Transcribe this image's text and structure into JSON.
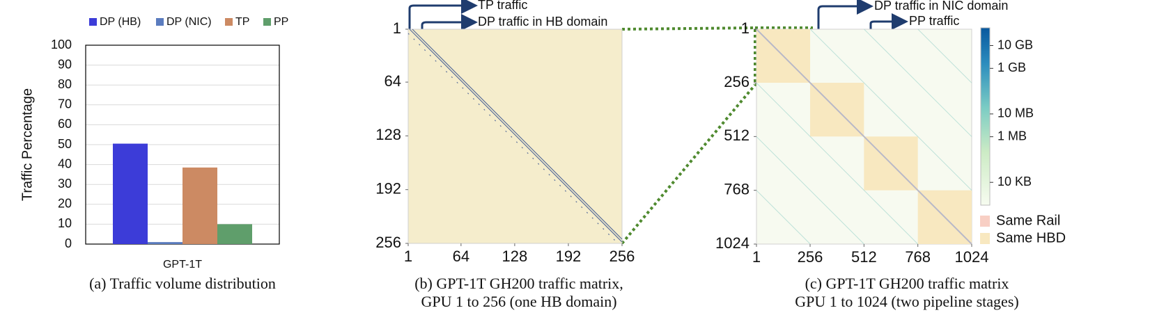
{
  "chart_data": [
    {
      "type": "bar",
      "ylabel": "Traffic Percentage",
      "categories": [
        "GPT-1T"
      ],
      "series": [
        {
          "name": "DP (HB)",
          "color": "#3c3cd8",
          "values": [
            50.5
          ]
        },
        {
          "name": "DP (NIC)",
          "color": "#5b7cbf",
          "values": [
            1
          ]
        },
        {
          "name": "TP",
          "color": "#cc8a63",
          "values": [
            38.5
          ]
        },
        {
          "name": "PP",
          "color": "#5f9e6b",
          "values": [
            10
          ]
        }
      ],
      "ylim": [
        0,
        100
      ],
      "yticks": [
        0,
        10,
        20,
        30,
        40,
        50,
        60,
        70,
        80,
        90,
        100
      ],
      "grid": true,
      "legend": "top",
      "caption": [
        "(a) Traffic volume distribution"
      ]
    },
    {
      "type": "matrix",
      "xlim": [
        1,
        256
      ],
      "ylim": [
        1,
        256
      ],
      "xticks": [
        1,
        64,
        128,
        192,
        256
      ],
      "yticks": [
        1,
        64,
        128,
        192,
        256
      ],
      "color": "#f5edcc",
      "annotations": [
        "TP traffic",
        "DP traffic in HB domain"
      ],
      "caption": [
        "(b) GPT-1T GH200 traffic matrix,",
        "GPU 1 to 256 (one HB domain)"
      ]
    },
    {
      "type": "matrix",
      "xlim": [
        1,
        1024
      ],
      "ylim": [
        1,
        1024
      ],
      "xticks": [
        1,
        256,
        512,
        768,
        1024
      ],
      "yticks": [
        1,
        256,
        512,
        768,
        1024
      ],
      "color": "#f7faf0",
      "annotations": [
        "DP traffic in NIC domain",
        "PP traffic"
      ],
      "colorbar": {
        "log": true,
        "lim": [
          1000,
          60000000000
        ],
        "ticks": [
          {
            "value": 10000000000,
            "label": "10 GB"
          },
          {
            "value": 1000000000,
            "label": "1 GB"
          },
          {
            "value": 10000000,
            "label": "10 MB"
          },
          {
            "value": 1000000,
            "label": "1 MB"
          },
          {
            "value": 10000,
            "label": "10 KB"
          }
        ]
      },
      "legend": [
        {
          "name": "Same Rail",
          "color": "#f8cfc4"
        },
        {
          "name": "Same HBD",
          "color": "#f8e8c0"
        }
      ],
      "caption": [
        "(c) GPT-1T GH200 traffic matrix",
        "GPU 1 to 1024 (two pipeline stages)"
      ]
    }
  ]
}
